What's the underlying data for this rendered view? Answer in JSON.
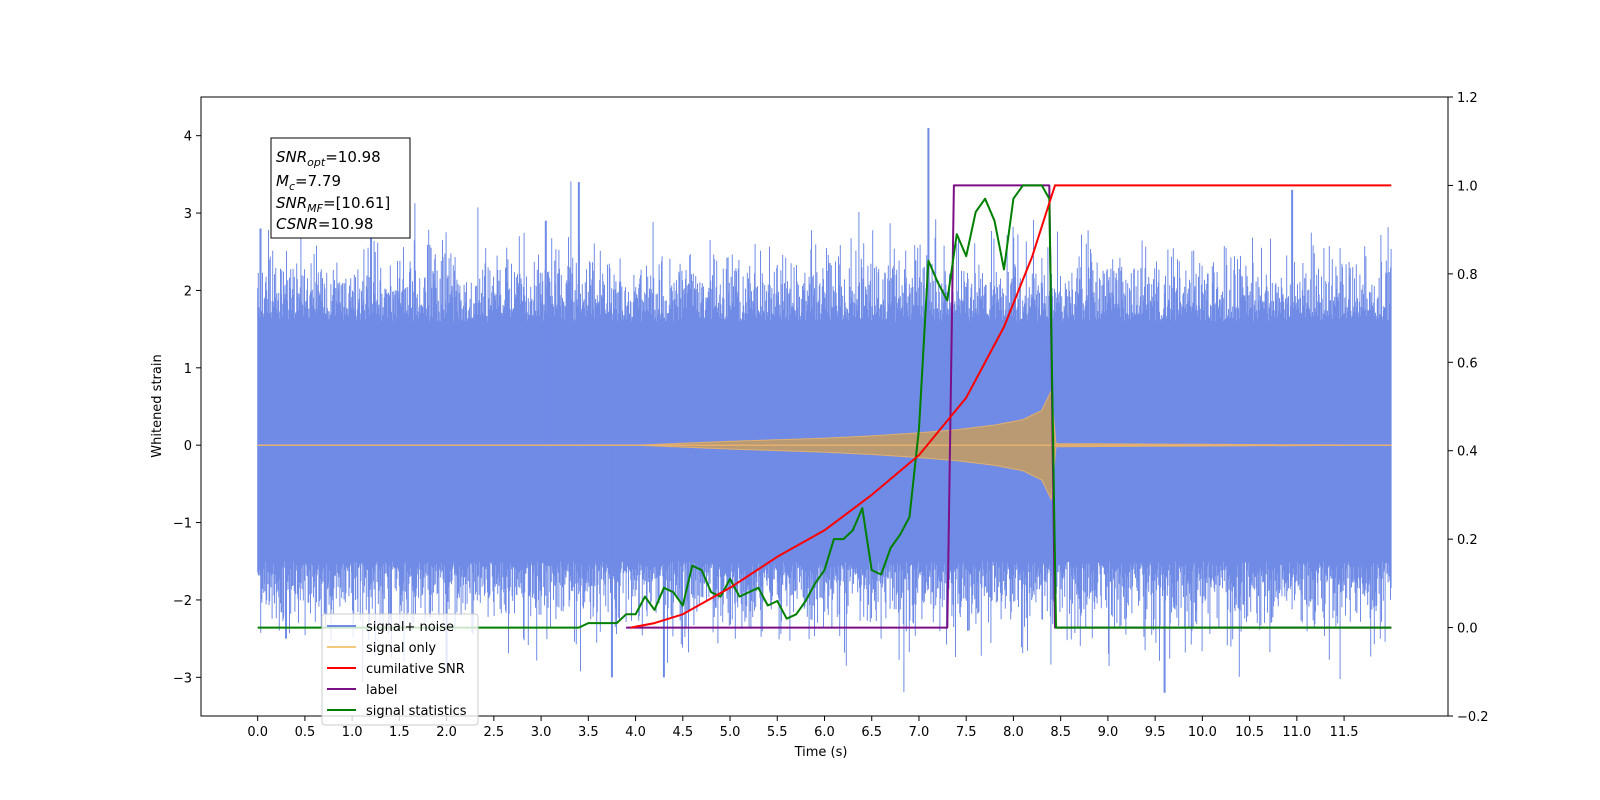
{
  "chart_data": {
    "type": "line",
    "title": "",
    "xlabel": "Time (s)",
    "ylabel": "Whitened strain",
    "xlim": [
      -0.6,
      12.6
    ],
    "ylim": [
      -3.5,
      4.5
    ],
    "y2lim": [
      -0.2,
      1.2
    ],
    "x_ticks": [
      "0.0",
      "0.5",
      "1.0",
      "1.5",
      "2.0",
      "2.5",
      "3.0",
      "3.5",
      "4.0",
      "4.5",
      "5.0",
      "5.5",
      "6.0",
      "6.5",
      "7.0",
      "7.5",
      "8.0",
      "8.5",
      "9.0",
      "9.5",
      "10.0",
      "10.5",
      "11.0",
      "11.5"
    ],
    "y_ticks": [
      "4",
      "3",
      "2",
      "1",
      "0",
      "−1",
      "−2",
      "−3"
    ],
    "y2_ticks": [
      "1.2",
      "1.0",
      "0.8",
      "0.6",
      "0.4",
      "0.2",
      "0.0",
      "−0.2"
    ],
    "grid": false,
    "legend_position": "lower-left",
    "annotation": {
      "snr_opt": "10.98",
      "mc": "7.79",
      "snr_mf": "[10.61]",
      "csnr": "10.98"
    },
    "series": [
      {
        "name": "signal+ noise",
        "axis": "left",
        "color": "#6f8be6",
        "note_range": [
          0.0,
          12.0
        ],
        "typical_amplitude": [
          -1.5,
          1.6
        ],
        "x": [
          0.03,
          0.3,
          1.2,
          2.0,
          3.05,
          3.4,
          3.75,
          4.3,
          7.1,
          8.3,
          9.6,
          10.95
        ],
        "values": [
          2.8,
          -2.5,
          2.7,
          -2.9,
          2.9,
          3.4,
          -3.0,
          -3.0,
          4.1,
          2.1,
          -3.2,
          3.3
        ]
      },
      {
        "name": "signal only",
        "axis": "left",
        "color": "#e8b070",
        "x": [
          0.0,
          4.0,
          5.0,
          6.0,
          6.5,
          7.0,
          7.4,
          7.8,
          8.1,
          8.3,
          8.4,
          8.45,
          12.0
        ],
        "amplitude": [
          0.0,
          0.0,
          0.05,
          0.09,
          0.12,
          0.16,
          0.2,
          0.26,
          0.33,
          0.45,
          0.7,
          0.02,
          0.0
        ]
      },
      {
        "name": "cumilative SNR",
        "axis": "right",
        "color": "#ff0000",
        "x": [
          3.95,
          4.2,
          4.5,
          5.0,
          5.5,
          6.0,
          6.5,
          7.0,
          7.5,
          7.9,
          8.2,
          8.38,
          8.44,
          12.0
        ],
        "values": [
          0.0,
          0.01,
          0.03,
          0.09,
          0.16,
          0.22,
          0.3,
          0.39,
          0.52,
          0.68,
          0.84,
          0.96,
          1.0,
          1.0
        ]
      },
      {
        "name": "label",
        "axis": "right",
        "color": "#7b0f86",
        "x": [
          3.9,
          7.3,
          7.37,
          8.38,
          8.44,
          12.0
        ],
        "values": [
          0.0,
          0.0,
          1.0,
          1.0,
          0.0,
          0.0
        ]
      },
      {
        "name": "signal statistics",
        "axis": "right",
        "color": "#008000",
        "x": [
          0.0,
          3.4,
          3.5,
          3.6,
          3.7,
          3.8,
          3.9,
          4.0,
          4.1,
          4.2,
          4.3,
          4.4,
          4.5,
          4.6,
          4.7,
          4.8,
          4.9,
          5.0,
          5.1,
          5.2,
          5.3,
          5.4,
          5.5,
          5.6,
          5.7,
          5.8,
          5.9,
          6.0,
          6.1,
          6.2,
          6.3,
          6.4,
          6.5,
          6.6,
          6.7,
          6.8,
          6.9,
          7.0,
          7.1,
          7.2,
          7.3,
          7.4,
          7.5,
          7.6,
          7.7,
          7.8,
          7.9,
          8.0,
          8.1,
          8.2,
          8.3,
          8.38,
          8.45,
          12.0
        ],
        "values": [
          0.0,
          0.0,
          0.01,
          0.01,
          0.01,
          0.01,
          0.03,
          0.03,
          0.07,
          0.04,
          0.09,
          0.08,
          0.05,
          0.14,
          0.13,
          0.08,
          0.07,
          0.11,
          0.07,
          0.08,
          0.09,
          0.05,
          0.06,
          0.02,
          0.03,
          0.06,
          0.1,
          0.13,
          0.2,
          0.2,
          0.22,
          0.27,
          0.13,
          0.12,
          0.18,
          0.21,
          0.25,
          0.45,
          0.83,
          0.78,
          0.74,
          0.89,
          0.84,
          0.94,
          0.97,
          0.92,
          0.81,
          0.97,
          1.0,
          1.0,
          1.0,
          0.97,
          0.0,
          0.0
        ]
      }
    ]
  }
}
